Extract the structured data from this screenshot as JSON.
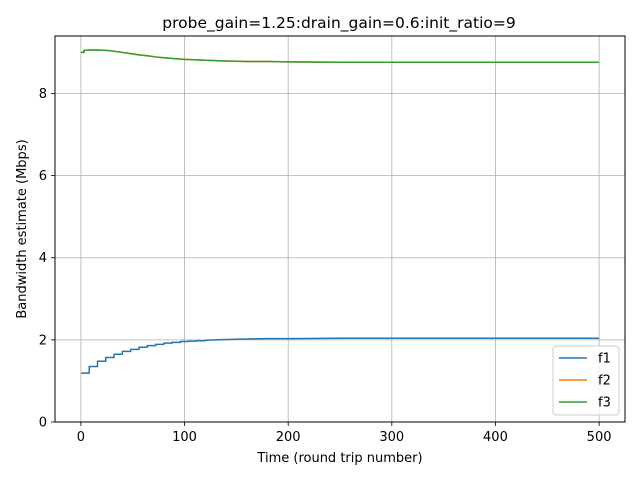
{
  "chart_data": {
    "type": "line",
    "title": "probe_gain=1.25:drain_gain=0.6:init_ratio=9",
    "xlabel": "Time (round trip number)",
    "ylabel": "Bandwidth estimate (Mbps)",
    "xlim": [
      -25,
      525
    ],
    "ylim": [
      0,
      9.4
    ],
    "xticks": [
      0,
      100,
      200,
      300,
      400,
      500
    ],
    "yticks": [
      0,
      2,
      4,
      6,
      8
    ],
    "grid": true,
    "legend_position": "lower right",
    "series": [
      {
        "name": "f1",
        "color": "#1f77b4",
        "x": [
          0,
          8,
          8,
          16,
          16,
          24,
          24,
          32,
          32,
          40,
          40,
          48,
          48,
          56,
          56,
          64,
          64,
          72,
          72,
          80,
          80,
          88,
          88,
          96,
          96,
          104,
          104,
          112,
          112,
          120,
          120,
          140,
          160,
          180,
          200,
          250,
          300,
          400,
          500
        ],
        "y": [
          1.19,
          1.19,
          1.35,
          1.35,
          1.48,
          1.48,
          1.57,
          1.57,
          1.65,
          1.65,
          1.72,
          1.72,
          1.77,
          1.77,
          1.82,
          1.82,
          1.86,
          1.86,
          1.89,
          1.89,
          1.92,
          1.92,
          1.94,
          1.94,
          1.96,
          1.96,
          1.97,
          1.97,
          1.98,
          1.98,
          1.99,
          2.01,
          2.02,
          2.03,
          2.03,
          2.04,
          2.04,
          2.04,
          2.04
        ]
      },
      {
        "name": "f2",
        "color": "#ff7f0e",
        "x": [
          0,
          3,
          3,
          8,
          16,
          24,
          32,
          40,
          48,
          56,
          64,
          72,
          80,
          90,
          100,
          120,
          140,
          160,
          180,
          200,
          250,
          300,
          400,
          500
        ],
        "y": [
          9.0,
          9.0,
          9.05,
          9.06,
          9.06,
          9.05,
          9.03,
          9.0,
          8.97,
          8.94,
          8.92,
          8.89,
          8.87,
          8.85,
          8.83,
          8.81,
          8.79,
          8.78,
          8.78,
          8.77,
          8.76,
          8.76,
          8.76,
          8.76
        ]
      },
      {
        "name": "f3",
        "color": "#2ca02c",
        "x": [
          0,
          3,
          3,
          8,
          16,
          24,
          32,
          40,
          48,
          56,
          64,
          72,
          80,
          90,
          100,
          120,
          140,
          160,
          180,
          200,
          250,
          300,
          400,
          500
        ],
        "y": [
          9.0,
          9.0,
          9.05,
          9.06,
          9.06,
          9.05,
          9.03,
          9.0,
          8.97,
          8.94,
          8.92,
          8.89,
          8.87,
          8.85,
          8.83,
          8.81,
          8.79,
          8.78,
          8.78,
          8.77,
          8.76,
          8.76,
          8.76,
          8.76
        ]
      }
    ]
  }
}
